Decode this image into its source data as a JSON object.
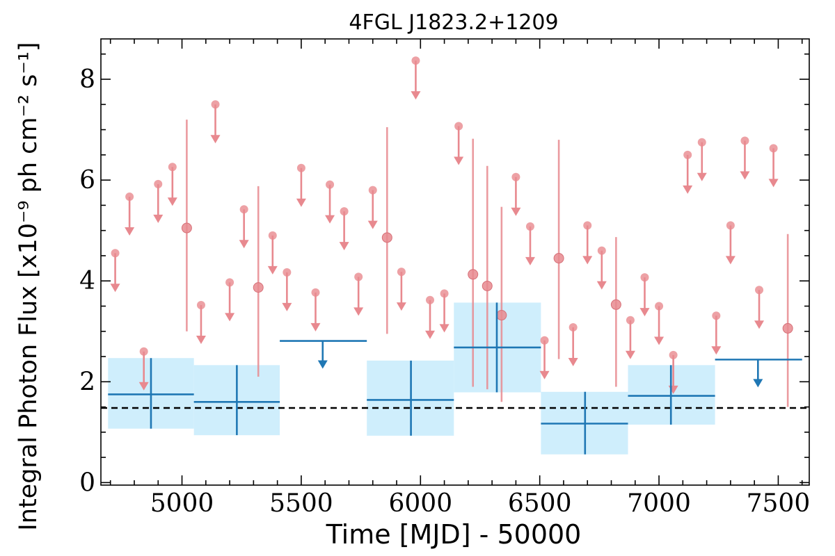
{
  "chart_data": {
    "type": "scatter",
    "title": "4FGL J1823.2+1209",
    "xlabel": "Time [MJD] - 50000",
    "ylabel": "Integral Photon Flux [x10⁻⁹ ph cm⁻² s⁻¹]",
    "xlim": [
      4660,
      7630
    ],
    "ylim": [
      -0.05,
      8.8
    ],
    "xticks": [
      5000,
      5500,
      6000,
      6500,
      7000,
      7500
    ],
    "xtick_labels": [
      "5000",
      "5500",
      "6000",
      "6500",
      "7000",
      "7500"
    ],
    "yticks": [
      0,
      2,
      4,
      6,
      8
    ],
    "ytick_labels": [
      "0",
      "2",
      "4",
      "6",
      "8"
    ],
    "grid": false,
    "reference_line": {
      "y": 1.48,
      "style": "dashed"
    },
    "colors": {
      "short_bins": "#e8898f",
      "long_bins": "#1f77b4",
      "long_bins_band": "#cfeefc",
      "reference_line": "#000000"
    },
    "series": [
      {
        "kind": "short-bin-upper-limits",
        "points": [
          {
            "x": 4720,
            "y": 4.55
          },
          {
            "x": 4780,
            "y": 5.67
          },
          {
            "x": 4840,
            "y": 2.6
          },
          {
            "x": 4900,
            "y": 5.92
          },
          {
            "x": 4960,
            "y": 6.26
          },
          {
            "x": 5080,
            "y": 3.52
          },
          {
            "x": 5140,
            "y": 7.5
          },
          {
            "x": 5200,
            "y": 3.97
          },
          {
            "x": 5260,
            "y": 5.42
          },
          {
            "x": 5380,
            "y": 4.9
          },
          {
            "x": 5440,
            "y": 4.17
          },
          {
            "x": 5500,
            "y": 6.24
          },
          {
            "x": 5560,
            "y": 3.77
          },
          {
            "x": 5620,
            "y": 5.91
          },
          {
            "x": 5680,
            "y": 5.38
          },
          {
            "x": 5740,
            "y": 4.08
          },
          {
            "x": 5800,
            "y": 5.8
          },
          {
            "x": 5920,
            "y": 4.18
          },
          {
            "x": 5980,
            "y": 8.37
          },
          {
            "x": 6040,
            "y": 3.62
          },
          {
            "x": 6100,
            "y": 3.75
          },
          {
            "x": 6160,
            "y": 7.07
          },
          {
            "x": 6400,
            "y": 6.06
          },
          {
            "x": 6460,
            "y": 5.08
          },
          {
            "x": 6520,
            "y": 2.82
          },
          {
            "x": 6640,
            "y": 3.08
          },
          {
            "x": 6700,
            "y": 5.1
          },
          {
            "x": 6760,
            "y": 4.6
          },
          {
            "x": 6880,
            "y": 3.22
          },
          {
            "x": 6940,
            "y": 4.07
          },
          {
            "x": 7000,
            "y": 3.5
          },
          {
            "x": 7060,
            "y": 2.53
          },
          {
            "x": 7120,
            "y": 6.5
          },
          {
            "x": 7180,
            "y": 6.75
          },
          {
            "x": 7240,
            "y": 3.31
          },
          {
            "x": 7300,
            "y": 5.1
          },
          {
            "x": 7360,
            "y": 6.78
          },
          {
            "x": 7420,
            "y": 3.82
          },
          {
            "x": 7480,
            "y": 6.63
          }
        ]
      },
      {
        "kind": "short-bin-detections",
        "points": [
          {
            "x": 5020,
            "y": 5.05,
            "ylo": 3.0,
            "yhi": 7.2
          },
          {
            "x": 5320,
            "y": 3.87,
            "ylo": 2.1,
            "yhi": 5.88
          },
          {
            "x": 5860,
            "y": 4.86,
            "ylo": 2.95,
            "yhi": 7.05
          },
          {
            "x": 6220,
            "y": 4.13,
            "ylo": 1.9,
            "yhi": 6.82
          },
          {
            "x": 6280,
            "y": 3.9,
            "ylo": 1.85,
            "yhi": 6.28
          },
          {
            "x": 6340,
            "y": 3.32,
            "ylo": 1.6,
            "yhi": 5.47
          },
          {
            "x": 6580,
            "y": 4.45,
            "ylo": 2.45,
            "yhi": 6.8
          },
          {
            "x": 6820,
            "y": 3.53,
            "ylo": 1.9,
            "yhi": 4.87
          },
          {
            "x": 7540,
            "y": 3.06,
            "ylo": 1.5,
            "yhi": 4.93
          }
        ]
      },
      {
        "kind": "long-bin-detections",
        "points": [
          {
            "x": 4870,
            "xlo": 4690,
            "xhi": 5050,
            "y": 1.75,
            "ylo": 1.07,
            "yhi": 2.47
          },
          {
            "x": 5230,
            "xlo": 5050,
            "xhi": 5410,
            "y": 1.6,
            "ylo": 0.94,
            "yhi": 2.33
          },
          {
            "x": 5960,
            "xlo": 5775,
            "xhi": 6140,
            "y": 1.64,
            "ylo": 0.93,
            "yhi": 2.42
          },
          {
            "x": 6320,
            "xlo": 6140,
            "xhi": 6505,
            "y": 2.68,
            "ylo": 1.79,
            "yhi": 3.57
          },
          {
            "x": 6690,
            "xlo": 6505,
            "xhi": 6870,
            "y": 1.17,
            "ylo": 0.56,
            "yhi": 1.8
          },
          {
            "x": 7050,
            "xlo": 6870,
            "xhi": 7235,
            "y": 1.72,
            "ylo": 1.15,
            "yhi": 2.33
          }
        ]
      },
      {
        "kind": "long-bin-upper-limits",
        "points": [
          {
            "x": 5590,
            "xlo": 5410,
            "xhi": 5775,
            "y": 2.81
          },
          {
            "x": 7415,
            "xlo": 7235,
            "xhi": 7600,
            "y": 2.44
          }
        ]
      }
    ]
  }
}
